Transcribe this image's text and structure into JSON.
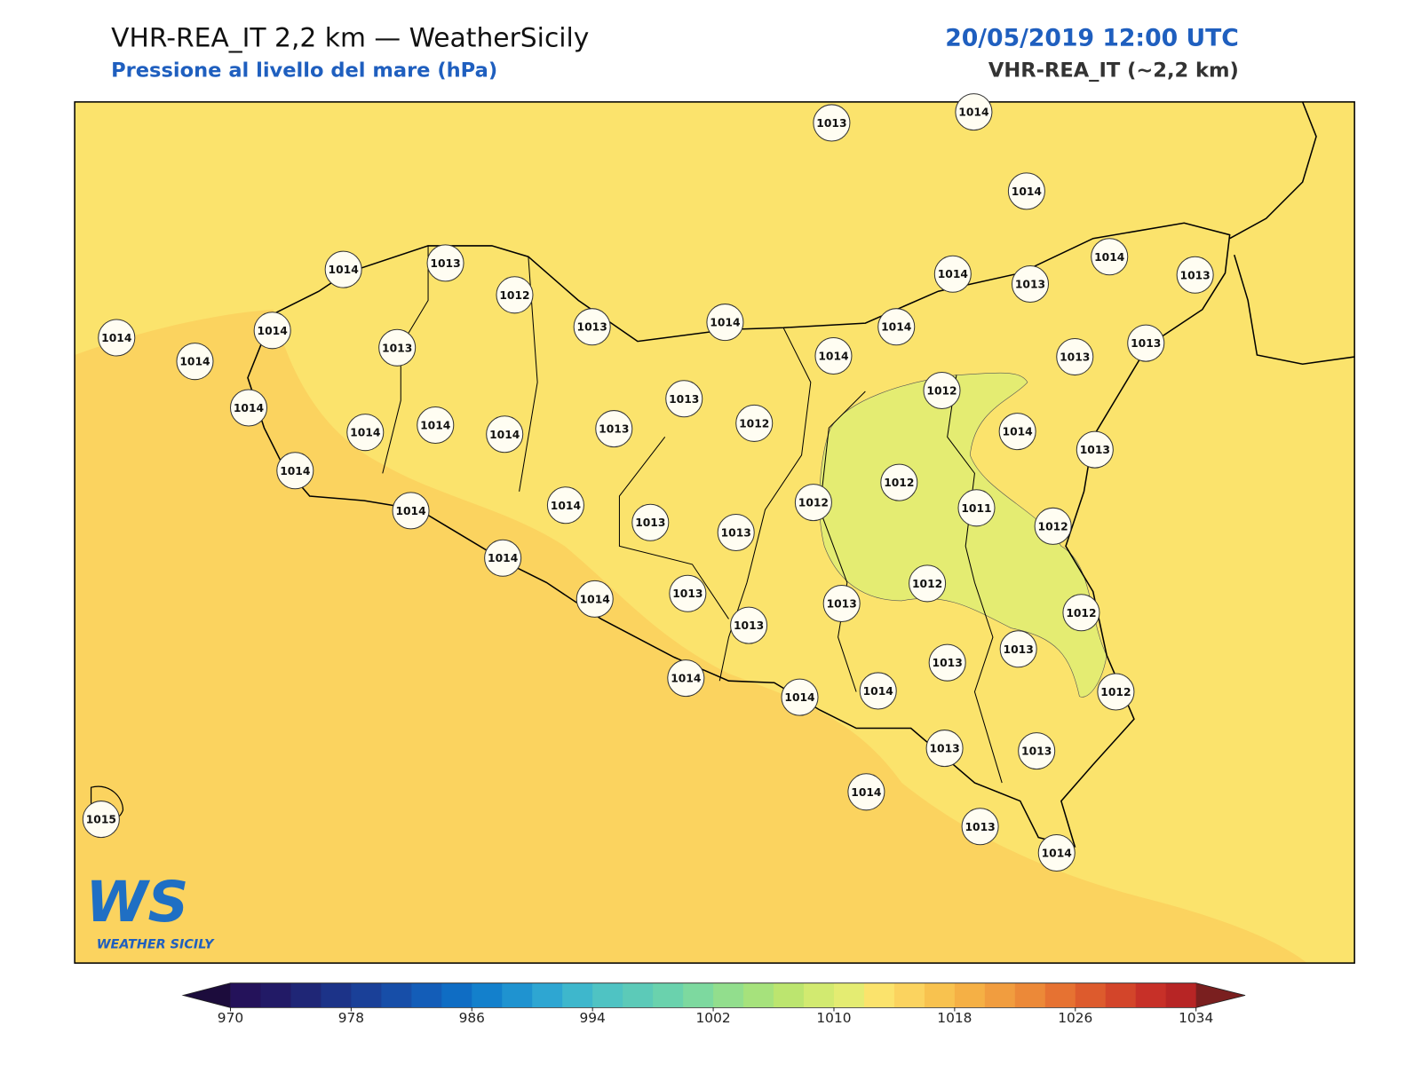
{
  "header": {
    "title": "VHR-REA_IT 2,2 km — WeatherSicily",
    "subtitle": "Pressione al livello del mare (hPa)",
    "datetime": "20/05/2019 12:00 UTC",
    "model": "VHR-REA_IT (~2,2 km)"
  },
  "stations": [
    1013,
    1014,
    1014,
    1014,
    1013,
    1012,
    1013,
    1014,
    1014,
    1013,
    1014,
    1013,
    1014,
    1014,
    1014,
    1013,
    1014,
    1014,
    1013,
    1013,
    1014,
    1013,
    1012,
    1014,
    1014,
    1014,
    1013,
    1012,
    1014,
    1013,
    1014,
    1012,
    1012,
    1011,
    1012,
    1014,
    1014,
    1013,
    1013,
    1014,
    1012,
    1014,
    1013,
    1013,
    1012,
    1013,
    1013,
    1013,
    1014,
    1014,
    1014,
    1012,
    1013,
    1013,
    1014,
    1015,
    1013,
    1014
  ],
  "field_colors": {
    "land_and_east_sea": "#fbe36c",
    "west_south_sea": "#fbd35f",
    "low_area": "#e4ec72"
  },
  "colorbar": {
    "bounds": [
      970,
      1034
    ],
    "ticks": [
      970,
      978,
      986,
      994,
      1002,
      1010,
      1018,
      1026,
      1034
    ],
    "colors": [
      "#24125a",
      "#221a66",
      "#1f2676",
      "#1c3388",
      "#1a4098",
      "#174ea8",
      "#135db8",
      "#0f6dc4",
      "#1380cc",
      "#1f93d0",
      "#2ea6d2",
      "#3eb7cc",
      "#4fc3c3",
      "#5ccab8",
      "#6ad2ad",
      "#7dd99f",
      "#92de8d",
      "#a6e27c",
      "#bce56f",
      "#d2ea70",
      "#e4ec72",
      "#fbe36c",
      "#fbd35f",
      "#f8c24f",
      "#f5b045",
      "#f19d3f",
      "#ec8938",
      "#e67232",
      "#dd5b2d",
      "#d3452a",
      "#c73028",
      "#b72525"
    ],
    "under_color": "#1c0c3c",
    "over_color": "#7a1f1f"
  },
  "logo": {
    "mark": "WS",
    "name": "WEATHER SICILY"
  }
}
